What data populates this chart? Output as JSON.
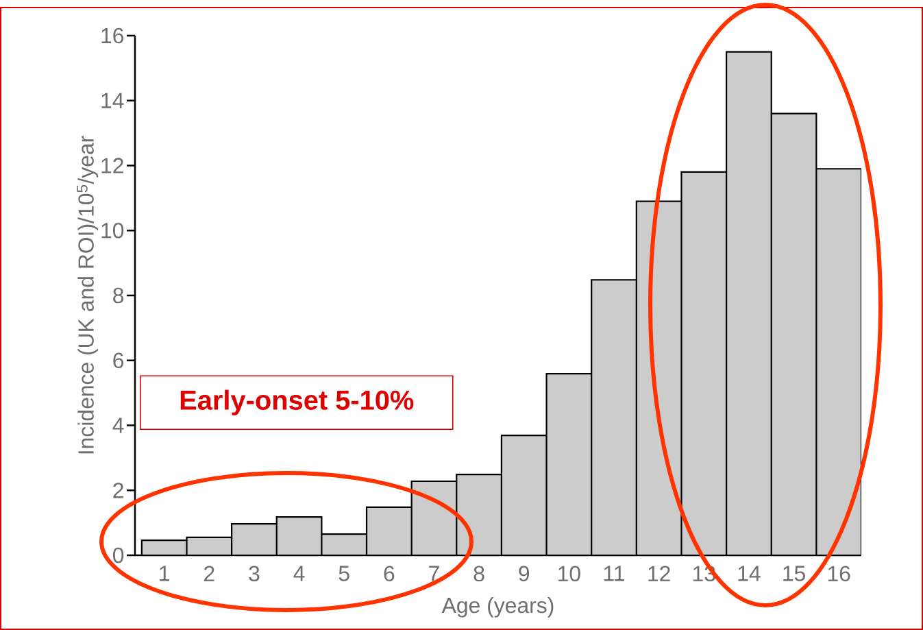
{
  "chart_data": {
    "type": "bar",
    "xlabel": "Age (years)",
    "ylabel": "Incidence (UK and ROI)/10$^{5}$/year",
    "categories": [
      "1",
      "2",
      "3",
      "4",
      "5",
      "6",
      "7",
      "8",
      "9",
      "10",
      "11",
      "12",
      "13",
      "14",
      "15",
      "16"
    ],
    "values": [
      0.46,
      0.55,
      0.97,
      1.18,
      0.65,
      1.48,
      2.28,
      2.49,
      3.69,
      5.59,
      8.48,
      10.9,
      11.8,
      15.5,
      13.6,
      11.9
    ],
    "color": "#cccccc",
    "ylim": [
      0,
      16
    ],
    "yticks": [
      0,
      2,
      4,
      6,
      8,
      10,
      12,
      14,
      16
    ],
    "annotations": [
      "Early-onset 5-10%"
    ]
  }
}
